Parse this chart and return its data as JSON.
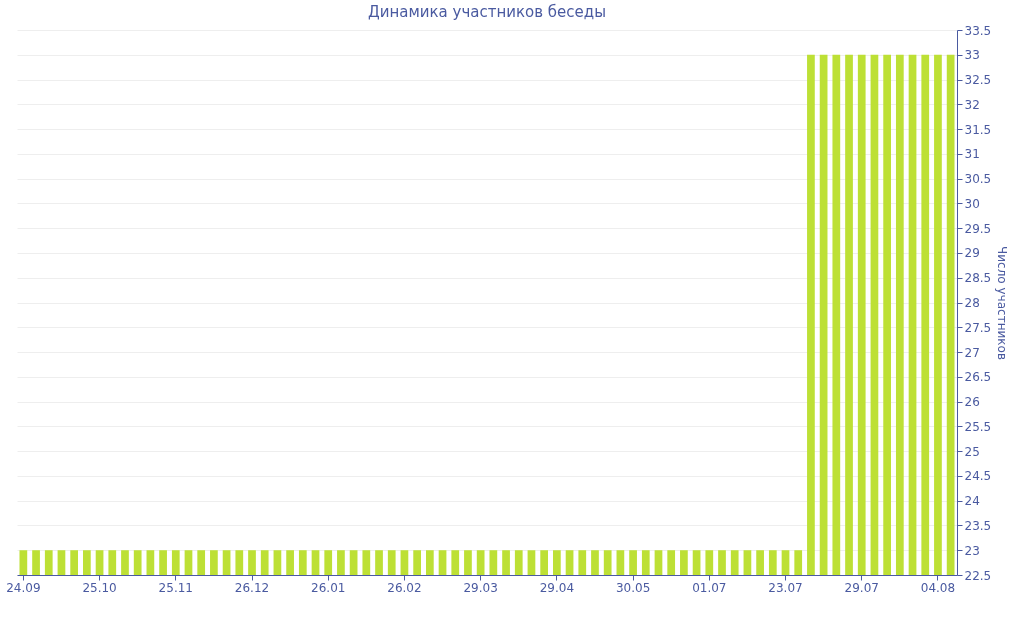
{
  "chart_data": {
    "type": "bar",
    "title": "Динамика участников беседы",
    "ylabel": "Число участников",
    "categories": [
      "24.09",
      null,
      null,
      null,
      null,
      null,
      "25.10",
      null,
      null,
      null,
      null,
      null,
      "25.11",
      null,
      null,
      null,
      null,
      null,
      "26.12",
      null,
      null,
      null,
      null,
      null,
      "26.01",
      null,
      null,
      null,
      null,
      null,
      "26.02",
      null,
      null,
      null,
      null,
      null,
      "29.03",
      null,
      null,
      null,
      null,
      null,
      "29.04",
      null,
      null,
      null,
      null,
      null,
      "30.05",
      null,
      null,
      null,
      null,
      null,
      "01.07",
      null,
      null,
      null,
      null,
      null,
      "23.07",
      null,
      null,
      null,
      null,
      null,
      "29.07",
      null,
      null,
      null,
      null,
      null,
      "04.08",
      null
    ],
    "values": [
      23,
      23,
      23,
      23,
      23,
      23,
      23,
      23,
      23,
      23,
      23,
      23,
      23,
      23,
      23,
      23,
      23,
      23,
      23,
      23,
      23,
      23,
      23,
      23,
      23,
      23,
      23,
      23,
      23,
      23,
      23,
      23,
      23,
      23,
      23,
      23,
      23,
      23,
      23,
      23,
      23,
      23,
      23,
      23,
      23,
      23,
      23,
      23,
      23,
      23,
      23,
      23,
      23,
      23,
      23,
      23,
      23,
      23,
      23,
      23,
      23,
      23,
      33,
      33,
      33,
      33,
      33,
      33,
      33,
      33,
      33,
      33,
      33,
      33
    ],
    "color": "#bde035",
    "ylim": [
      22.5,
      33.5
    ],
    "yticks": [
      22.5,
      23,
      23.5,
      24,
      24.5,
      25,
      25.5,
      26,
      26.5,
      27,
      27.5,
      28,
      28.5,
      29,
      29.5,
      30,
      30.5,
      31,
      31.5,
      32,
      32.5,
      33,
      33.5
    ],
    "grid": "y"
  }
}
